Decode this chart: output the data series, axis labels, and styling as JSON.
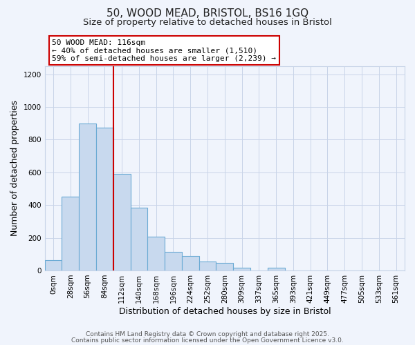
{
  "title": "50, WOOD MEAD, BRISTOL, BS16 1GQ",
  "subtitle": "Size of property relative to detached houses in Bristol",
  "xlabel": "Distribution of detached houses by size in Bristol",
  "ylabel": "Number of detached properties",
  "bar_labels": [
    "0sqm",
    "28sqm",
    "56sqm",
    "84sqm",
    "112sqm",
    "140sqm",
    "168sqm",
    "196sqm",
    "224sqm",
    "252sqm",
    "280sqm",
    "309sqm",
    "337sqm",
    "365sqm",
    "393sqm",
    "421sqm",
    "449sqm",
    "477sqm",
    "505sqm",
    "533sqm",
    "561sqm"
  ],
  "bar_values": [
    65,
    450,
    900,
    875,
    590,
    385,
    205,
    115,
    87,
    55,
    47,
    18,
    0,
    15,
    0,
    0,
    0,
    0,
    0,
    0,
    0
  ],
  "bar_color": "#c8d9ee",
  "bar_edge_color": "#6aaad4",
  "grid_color": "#c8d4e8",
  "background_color": "#f0f4fc",
  "vline_x_index": 4,
  "vline_color": "#cc0000",
  "annotation_line1": "50 WOOD MEAD: 116sqm",
  "annotation_line2": "← 40% of detached houses are smaller (1,510)",
  "annotation_line3": "59% of semi-detached houses are larger (2,239) →",
  "footer_line1": "Contains HM Land Registry data © Crown copyright and database right 2025.",
  "footer_line2": "Contains public sector information licensed under the Open Government Licence v3.0.",
  "ylim": [
    0,
    1250
  ],
  "yticks": [
    0,
    200,
    400,
    600,
    800,
    1000,
    1200
  ],
  "title_fontsize": 11,
  "subtitle_fontsize": 9.5,
  "axis_label_fontsize": 9,
  "tick_fontsize": 7.5,
  "annot_fontsize": 8,
  "footer_fontsize": 6.5
}
